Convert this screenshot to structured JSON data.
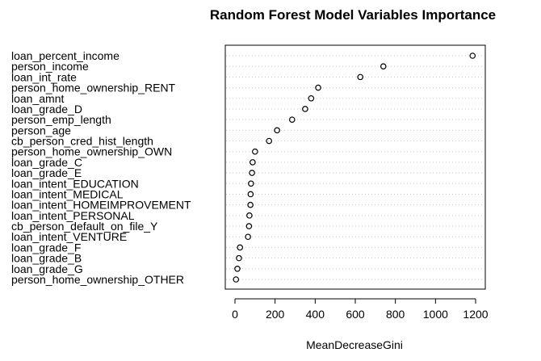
{
  "chart_data": {
    "type": "scatter",
    "title": "Random Forest Model Variables Importance",
    "xlabel": "MeanDecreaseGini",
    "ylabel": "",
    "xlim": [
      0,
      1200
    ],
    "xticks": [
      0,
      200,
      400,
      600,
      800,
      1000,
      1200
    ],
    "grid": "horizontal dotted",
    "marker": "open-circle",
    "colors": {
      "point": "#000000",
      "grid": "#c8c8c8",
      "frame": "#000000"
    },
    "categories": [
      "loan_percent_income",
      "person_income",
      "loan_int_rate",
      "person_home_ownership_RENT",
      "loan_amnt",
      "loan_grade_D",
      "person_emp_length",
      "person_age",
      "cb_person_cred_hist_length",
      "person_home_ownership_OWN",
      "loan_grade_C",
      "loan_grade_E",
      "loan_intent_EDUCATION",
      "loan_intent_MEDICAL",
      "loan_intent_HOMEIMPROVEMENT",
      "loan_intent_PERSONAL",
      "cb_person_default_on_file_Y",
      "loan_intent_VENTURE",
      "loan_grade_F",
      "loan_grade_B",
      "loan_grade_G",
      "person_home_ownership_OTHER"
    ],
    "values": [
      1185,
      740,
      625,
      415,
      380,
      350,
      285,
      210,
      170,
      100,
      88,
      85,
      80,
      78,
      77,
      72,
      70,
      65,
      25,
      20,
      12,
      5
    ]
  }
}
